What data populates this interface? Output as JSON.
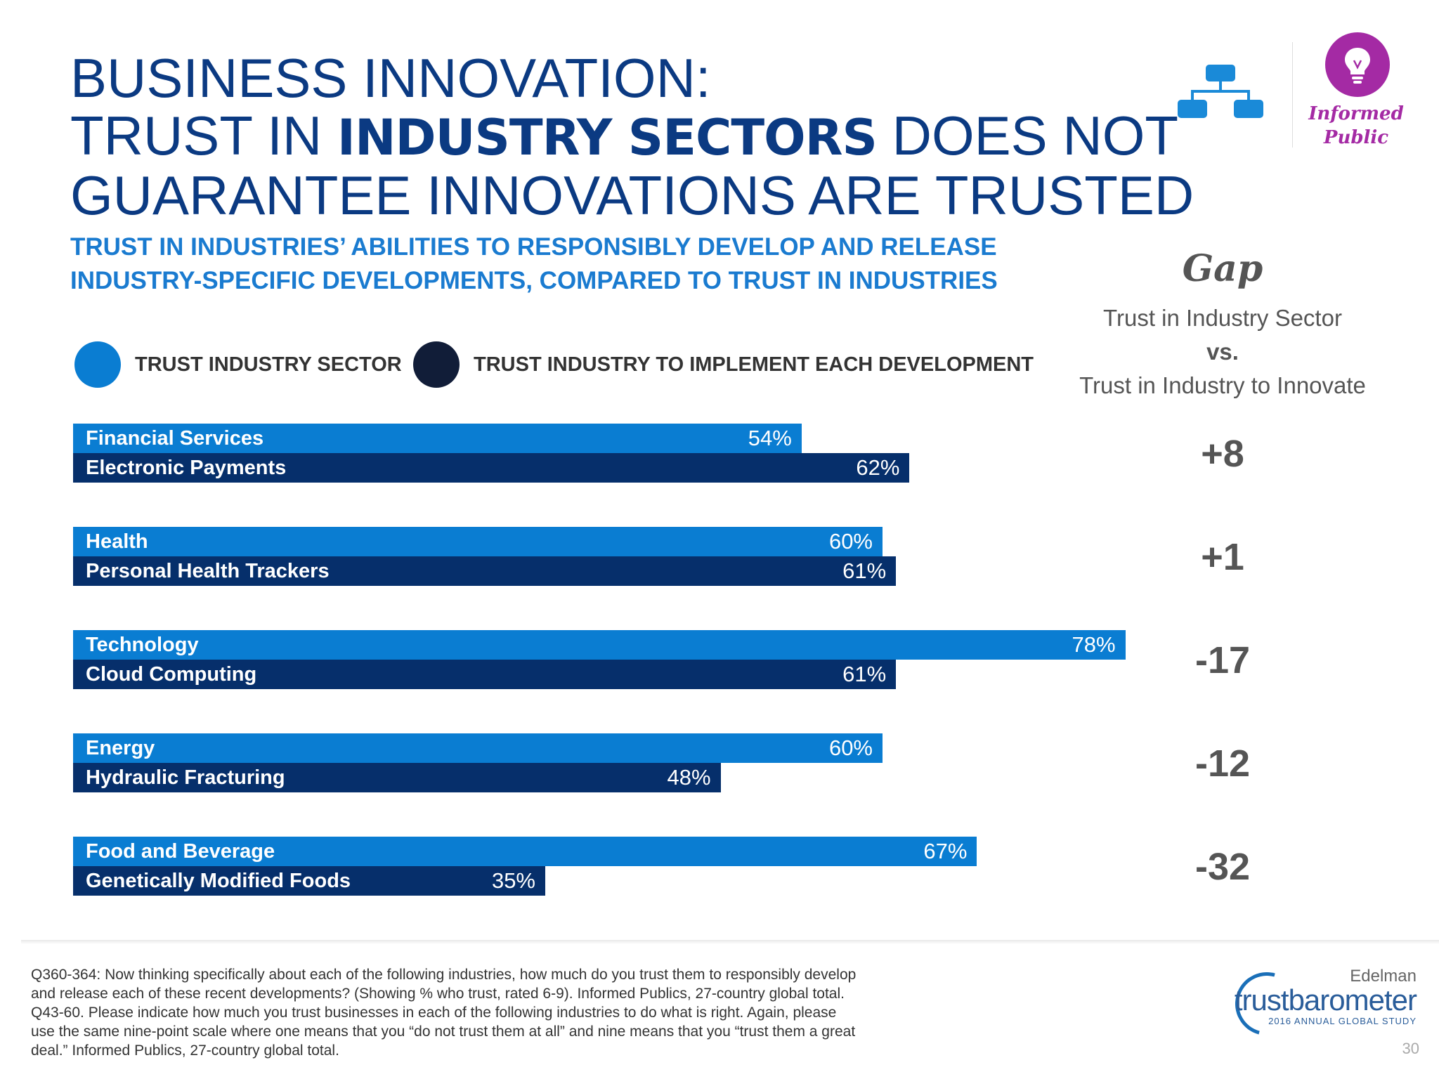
{
  "header": {
    "title_line1": "BUSINESS INNOVATION:",
    "title_line2_a": "TRUST IN ",
    "title_line2_bold": "INDUSTRY SECTORS",
    "title_line2_b": " DOES NOT",
    "title_line3": "GUARANTEE INNOVATIONS ARE TRUSTED",
    "subtitle_line1": "TRUST IN INDUSTRIES’ ABILITIES TO RESPONSIBLY DEVELOP AND RELEASE",
    "subtitle_line2": "INDUSTRY-SPECIFIC DEVELOPMENTS, COMPARED TO TRUST IN INDUSTRIES"
  },
  "badge": {
    "label_line1": "Informed",
    "label_line2": "Public",
    "icon": "lightbulb-icon",
    "color": "#a42aa4"
  },
  "legend": {
    "sector": "TRUST INDUSTRY SECTOR",
    "develop": "TRUST INDUSTRY TO IMPLEMENT EACH DEVELOPMENT"
  },
  "gap_panel": {
    "title": "Gap",
    "line1": "Trust in Industry Sector",
    "line2": "vs.",
    "line3": "Trust in Industry to Innovate"
  },
  "colors": {
    "sector": "#0a7dd2",
    "development": "#062f6b",
    "title": "#0b3a82",
    "subtitle": "#1a7bd0"
  },
  "chart_data": {
    "type": "bar",
    "orientation": "horizontal",
    "xlim": [
      0,
      100
    ],
    "groups": [
      {
        "sector": "Financial Services",
        "sector_value": 54,
        "sector_label": "54%",
        "development": "Electronic Payments",
        "development_value": 62,
        "development_label": "62%",
        "gap": "+8"
      },
      {
        "sector": "Health",
        "sector_value": 60,
        "sector_label": "60%",
        "development": "Personal Health Trackers",
        "development_value": 61,
        "development_label": "61%",
        "gap": "+1"
      },
      {
        "sector": "Technology",
        "sector_value": 78,
        "sector_label": "78%",
        "development": "Cloud Computing",
        "development_value": 61,
        "development_label": "61%",
        "gap": "-17"
      },
      {
        "sector": "Energy",
        "sector_value": 60,
        "sector_label": "60%",
        "development": "Hydraulic Fracturing",
        "development_value": 48,
        "development_label": "48%",
        "gap": "-12"
      },
      {
        "sector": "Food and Beverage",
        "sector_value": 67,
        "sector_label": "67%",
        "development": "Genetically Modified Foods",
        "development_value": 35,
        "development_label": "35%",
        "gap": "-32"
      }
    ]
  },
  "footer": {
    "note_1": "Q360-364: Now thinking specifically about each of the following industries, how much do you trust them to responsibly develop",
    "note_2": "and release each of these recent developments? (Showing % who trust, rated 6-9). Informed Publics, 27-country global total.",
    "note_3": "Q43-60. Please indicate how much you trust businesses in each of the following industries to do what is right.  Again, please",
    "note_4": "use the same nine-point scale where one means that you “do not trust them at all” and nine means that you “trust them a great",
    "note_5": "deal.” Informed Publics, 27-country global total.",
    "brand_top": "Edelman",
    "brand_main": "trustbarometer",
    "brand_sub": "2016 ANNUAL GLOBAL STUDY",
    "page_number": "30"
  }
}
